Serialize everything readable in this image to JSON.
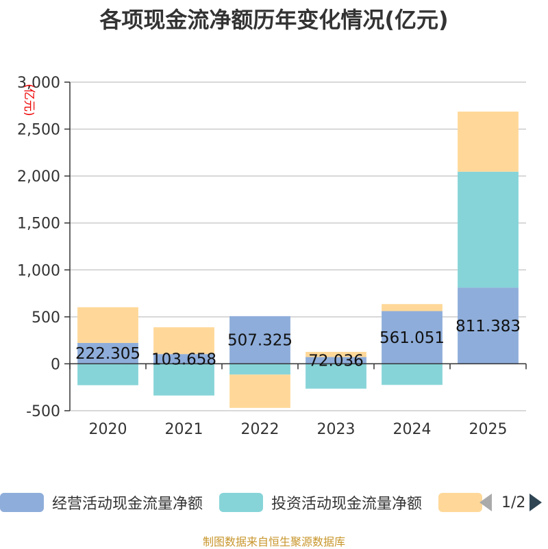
{
  "title": "各项现金流净额历年变化情况(亿元)",
  "source": "制图数据来自恒生聚源数据库",
  "legend_page": "1/2",
  "colors": {
    "operating": "#8eadda",
    "investing": "#86d4d8",
    "financing": "#ffd899"
  },
  "chart_data": {
    "type": "bar",
    "stacked": true,
    "categories": [
      "2020",
      "2021",
      "2022",
      "2023",
      "2024",
      "2025"
    ],
    "unit_label": "(亿元)",
    "ylim": [
      -500,
      3000
    ],
    "yticks": [
      -500,
      0,
      500,
      1000,
      1500,
      2000,
      2500,
      3000
    ],
    "ytick_labels": [
      "-500",
      "0",
      "500",
      "1,000",
      "1,500",
      "2,000",
      "2,500",
      "3,000"
    ],
    "grid": true,
    "legend_position": "bottom",
    "series": [
      {
        "name": "经营活动现金流量净额",
        "color_key": "operating",
        "values": [
          222.305,
          103.658,
          507.325,
          72.036,
          561.051,
          811.383
        ],
        "labels": [
          "222.305",
          "103.658",
          "507.325",
          "72.036",
          "561.051",
          "811.383"
        ]
      },
      {
        "name": "投资活动现金流量净额",
        "color_key": "investing",
        "values": [
          -228,
          -338,
          -115,
          -265,
          -225,
          1235
        ]
      },
      {
        "name": "",
        "color_key": "financing",
        "values": [
          380,
          285,
          -355,
          55,
          75,
          640
        ]
      }
    ]
  }
}
